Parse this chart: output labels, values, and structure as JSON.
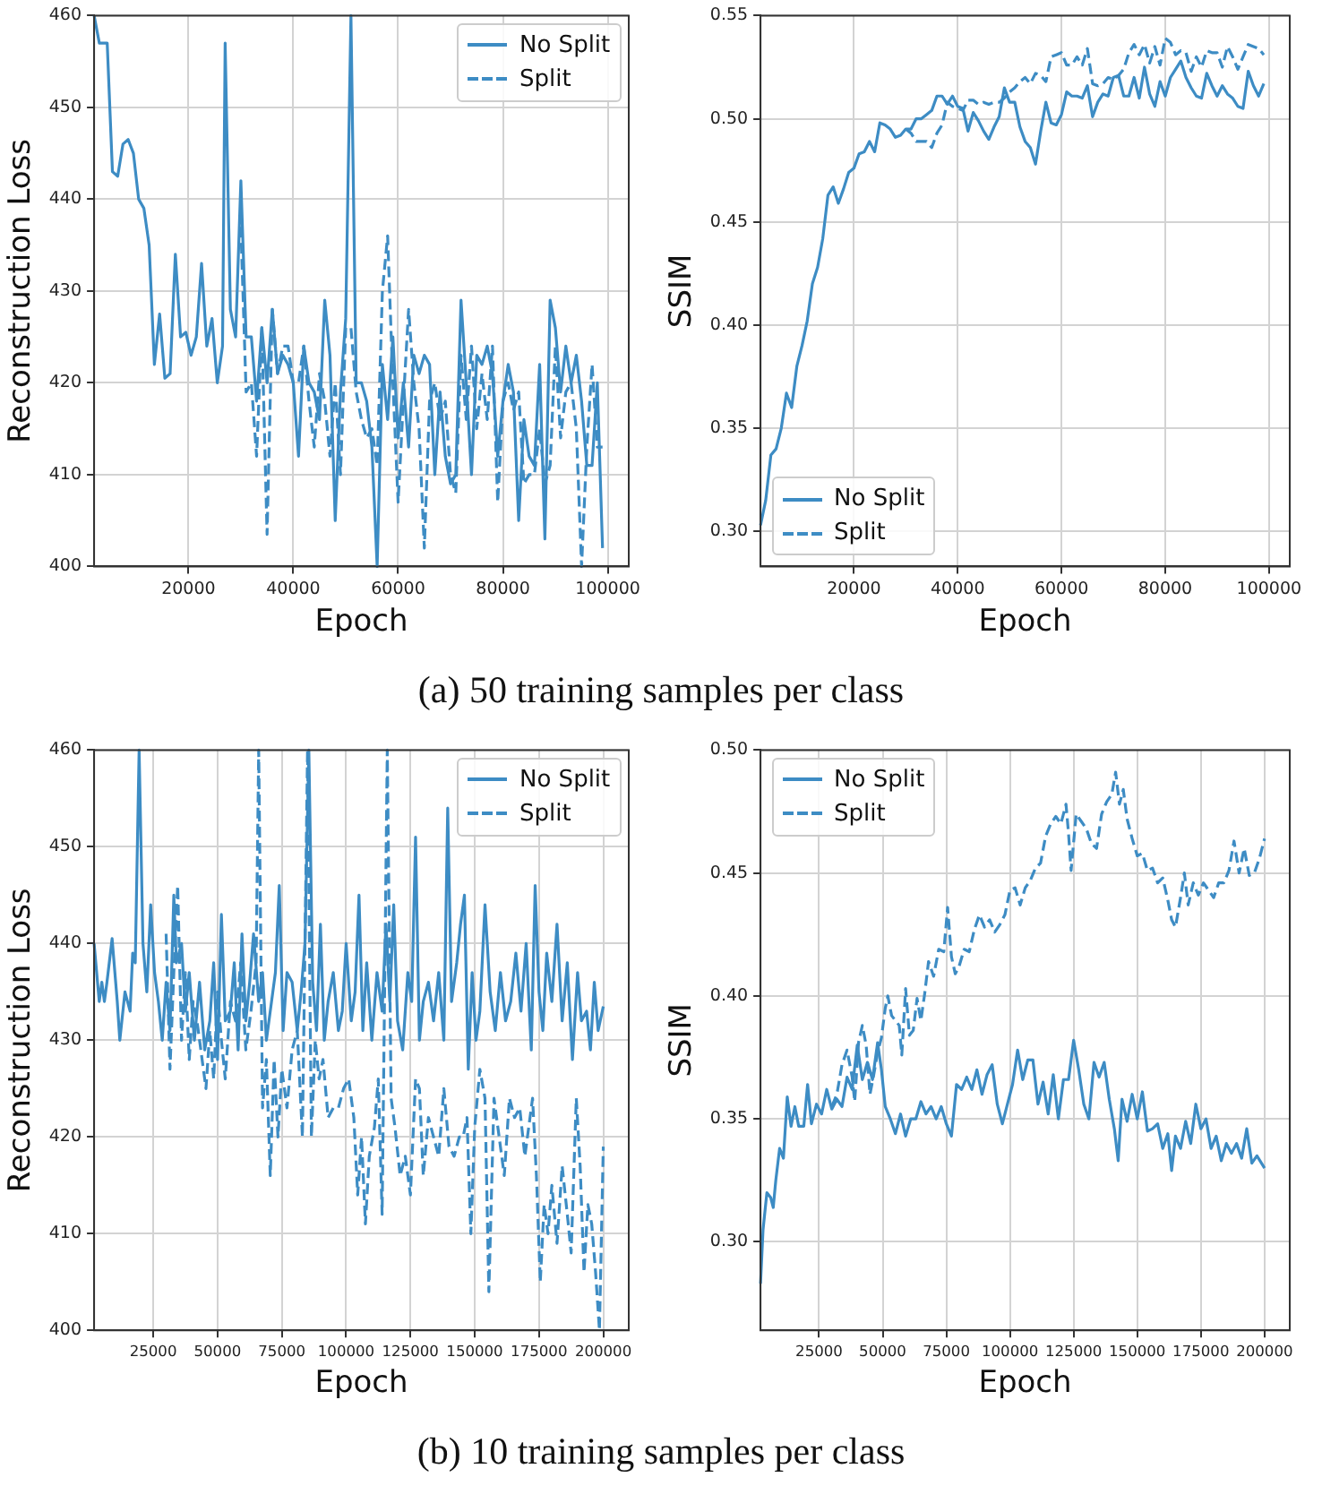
{
  "chart_data": [
    {
      "type": "line",
      "xlabel": "Epoch",
      "ylabel": "Reconstruction Loss",
      "xlim": [
        2000,
        104000
      ],
      "ylim": [
        400,
        460
      ],
      "xticks": [
        20000,
        40000,
        60000,
        80000,
        100000
      ],
      "yticks": [
        400,
        410,
        420,
        430,
        440,
        450,
        460
      ],
      "grid": true,
      "legend": "top right",
      "annotations": [
        "(a) 50 training samples per class"
      ],
      "series": [
        {
          "name": "No Split",
          "color": "#3d8cc4",
          "line_style": "solid",
          "x": [
            2000,
            3000,
            4500,
            5500,
            6500,
            7500,
            8500,
            9500,
            10500,
            11500,
            12500,
            13500,
            14500,
            15500,
            16500,
            17500,
            18500,
            19500,
            20500,
            21500,
            22500,
            23500,
            24500,
            25500,
            26500,
            27000,
            28000,
            29000,
            30000,
            31000,
            32000,
            33000,
            34000,
            35000,
            36000,
            37000,
            38000,
            39000,
            40000,
            41000,
            42000,
            43000,
            44000,
            45000,
            46000,
            47000,
            48000,
            49000,
            50000,
            51000,
            52000,
            53000,
            54000,
            55000,
            56000,
            57000,
            58000,
            59000,
            60000,
            61000,
            62000,
            63000,
            64000,
            65000,
            66000,
            67000,
            68000,
            69000,
            70000,
            71000,
            72000,
            73000,
            74000,
            75000,
            76000,
            77000,
            78000,
            79000,
            80000,
            81000,
            82000,
            83000,
            84000,
            85000,
            86000,
            87000,
            88000,
            89000,
            90000,
            91000,
            92000,
            93000,
            94000,
            95000,
            96000,
            97000,
            98000,
            99000
          ],
          "values": [
            460,
            457,
            457,
            443,
            442.5,
            446,
            446.5,
            445,
            440,
            439,
            435,
            422,
            427.5,
            420.5,
            421,
            434,
            425,
            425.5,
            423,
            425,
            433,
            424,
            427,
            420,
            424,
            457,
            428,
            425,
            442,
            425,
            425,
            418,
            426,
            420,
            428,
            421,
            423,
            422,
            420,
            412,
            424,
            420,
            419,
            416,
            429,
            423,
            405,
            419,
            427,
            460,
            420,
            420,
            418,
            413,
            400,
            422,
            416,
            425,
            414,
            420,
            413,
            423,
            421,
            423,
            422,
            410,
            419,
            412,
            409,
            410,
            429,
            420,
            410,
            423,
            422,
            424,
            421,
            412,
            418,
            422,
            419,
            405,
            416,
            412,
            411,
            422,
            403,
            429,
            426,
            419,
            424,
            420,
            423,
            418,
            411,
            411,
            420,
            402
          ]
        },
        {
          "name": "Split",
          "color": "#3d8cc4",
          "line_style": "dashed",
          "x": [
            30000,
            31000,
            32000,
            33000,
            34000,
            35000,
            36000,
            37000,
            38000,
            39000,
            40000,
            41000,
            42000,
            43000,
            44000,
            45000,
            46000,
            47000,
            48000,
            49000,
            50000,
            51000,
            52000,
            53000,
            54000,
            55000,
            56000,
            57000,
            58000,
            59000,
            60000,
            61000,
            62000,
            63000,
            64000,
            65000,
            66000,
            67000,
            68000,
            69000,
            70000,
            71000,
            72000,
            73000,
            74000,
            75000,
            76000,
            77000,
            78000,
            79000,
            80000,
            81000,
            82000,
            83000,
            84000,
            85000,
            86000,
            87000,
            88000,
            89000,
            90000,
            91000,
            92000,
            93000,
            94000,
            95000,
            96000,
            97000,
            98000,
            99000
          ],
          "values": [
            437,
            419,
            420,
            412,
            426,
            403.5,
            428,
            421,
            424,
            424,
            420,
            420,
            424,
            418,
            413,
            421,
            418,
            412,
            420,
            410,
            426,
            426,
            419,
            416,
            414,
            415,
            411,
            430,
            436,
            420,
            407,
            418,
            428,
            420,
            415,
            402,
            418,
            420,
            416,
            418,
            410,
            408,
            423,
            416,
            424,
            415,
            421,
            416,
            424,
            407,
            418,
            420,
            417,
            419,
            409,
            410,
            410,
            415,
            409,
            411,
            424,
            414,
            419,
            420,
            415,
            400,
            413,
            422,
            413,
            413
          ]
        }
      ]
    },
    {
      "type": "line",
      "xlabel": "Epoch",
      "ylabel": "SSIM",
      "xlim": [
        2000,
        104000
      ],
      "ylim": [
        0.283,
        0.55
      ],
      "xticks": [
        20000,
        40000,
        60000,
        80000,
        100000
      ],
      "yticks": [
        {
          "value": 0.3,
          "label": "0.30"
        },
        0.35,
        {
          "value": 0.4,
          "label": "0.40"
        },
        0.45,
        {
          "value": 0.5,
          "label": "0.50"
        },
        0.55
      ],
      "grid": true,
      "legend": "bottom left",
      "series": [
        {
          "name": "No Split",
          "color": "#3d8cc4",
          "line_style": "solid",
          "x": [
            2000,
            3000,
            4000,
            5000,
            6000,
            7000,
            8000,
            9000,
            10000,
            11000,
            12000,
            13000,
            14000,
            15000,
            16000,
            17000,
            18000,
            19000,
            20000,
            21000,
            22000,
            23000,
            24000,
            25000,
            26000,
            27000,
            28000,
            29000,
            30000,
            31000,
            32000,
            33000,
            34000,
            35000,
            36000,
            37000,
            38000,
            39000,
            40000,
            41000,
            42000,
            43000,
            44000,
            45000,
            46000,
            47000,
            48000,
            49000,
            50000,
            51000,
            52000,
            53000,
            54000,
            55000,
            56000,
            57000,
            58000,
            59000,
            60000,
            61000,
            62000,
            63000,
            64000,
            65000,
            66000,
            67000,
            68000,
            69000,
            70000,
            71000,
            72000,
            73000,
            74000,
            75000,
            76000,
            77000,
            78000,
            79000,
            80000,
            81000,
            82000,
            83000,
            84000,
            85000,
            86000,
            87000,
            88000,
            89000,
            90000,
            91000,
            92000,
            93000,
            94000,
            95000,
            96000,
            97000,
            98000,
            99000
          ],
          "values": [
            0.303,
            0.315,
            0.337,
            0.34,
            0.35,
            0.367,
            0.36,
            0.38,
            0.39,
            0.402,
            0.42,
            0.428,
            0.442,
            0.463,
            0.467,
            0.459,
            0.466,
            0.474,
            0.476,
            0.483,
            0.484,
            0.489,
            0.484,
            0.498,
            0.497,
            0.495,
            0.491,
            0.492,
            0.495,
            0.495,
            0.5,
            0.5,
            0.502,
            0.504,
            0.511,
            0.511,
            0.507,
            0.511,
            0.506,
            0.505,
            0.494,
            0.503,
            0.499,
            0.494,
            0.49,
            0.496,
            0.501,
            0.515,
            0.508,
            0.508,
            0.496,
            0.489,
            0.486,
            0.478,
            0.494,
            0.508,
            0.498,
            0.497,
            0.502,
            0.513,
            0.511,
            0.511,
            0.51,
            0.516,
            0.501,
            0.508,
            0.512,
            0.511,
            0.52,
            0.521,
            0.511,
            0.511,
            0.52,
            0.51,
            0.525,
            0.512,
            0.506,
            0.518,
            0.511,
            0.52,
            0.524,
            0.528,
            0.52,
            0.515,
            0.511,
            0.51,
            0.522,
            0.516,
            0.511,
            0.516,
            0.512,
            0.51,
            0.506,
            0.505,
            0.523,
            0.516,
            0.511,
            0.517
          ]
        },
        {
          "name": "Split",
          "color": "#3d8cc4",
          "line_style": "dashed",
          "x": [
            30000,
            31000,
            32000,
            33000,
            34000,
            35000,
            36000,
            37000,
            38000,
            39000,
            40000,
            41000,
            42000,
            43000,
            44000,
            45000,
            46000,
            47000,
            48000,
            49000,
            50000,
            51000,
            52000,
            53000,
            54000,
            55000,
            56000,
            57000,
            58000,
            59000,
            60000,
            61000,
            62000,
            63000,
            64000,
            65000,
            66000,
            67000,
            68000,
            69000,
            70000,
            71000,
            72000,
            73000,
            74000,
            75000,
            76000,
            77000,
            78000,
            79000,
            80000,
            81000,
            82000,
            83000,
            84000,
            85000,
            86000,
            87000,
            88000,
            89000,
            90000,
            91000,
            92000,
            93000,
            94000,
            95000,
            96000,
            97000,
            98000,
            99000
          ],
          "values": [
            0.495,
            0.493,
            0.489,
            0.489,
            0.489,
            0.486,
            0.493,
            0.497,
            0.508,
            0.506,
            0.505,
            0.504,
            0.509,
            0.509,
            0.507,
            0.508,
            0.507,
            0.508,
            0.508,
            0.51,
            0.513,
            0.515,
            0.518,
            0.52,
            0.517,
            0.522,
            0.521,
            0.518,
            0.53,
            0.531,
            0.532,
            0.526,
            0.526,
            0.53,
            0.526,
            0.534,
            0.517,
            0.516,
            0.517,
            0.52,
            0.519,
            0.521,
            0.524,
            0.532,
            0.536,
            0.531,
            0.536,
            0.527,
            0.535,
            0.526,
            0.539,
            0.537,
            0.531,
            0.533,
            0.532,
            0.523,
            0.53,
            0.525,
            0.533,
            0.532,
            0.532,
            0.525,
            0.535,
            0.53,
            0.524,
            0.53,
            0.536,
            0.535,
            0.534,
            0.531
          ]
        }
      ]
    },
    {
      "type": "line",
      "xlabel": "Epoch",
      "ylabel": "Reconstruction Loss",
      "xlim": [
        2000,
        209900
      ],
      "ylim": [
        400,
        460
      ],
      "xticks": [
        25000,
        50000,
        75000,
        100000,
        125000,
        150000,
        175000,
        200000
      ],
      "yticks": [
        400,
        410,
        420,
        430,
        440,
        450,
        460
      ],
      "grid": true,
      "legend": "top right",
      "annotations": [
        "(b) 10 training samples per class"
      ],
      "series": [
        {
          "name": "No Split",
          "color": "#3d8cc4",
          "line_style": "solid",
          "x": [
            2000,
            4000,
            5000,
            6000,
            7000,
            9000,
            11000,
            12000,
            14000,
            16000,
            17000,
            18000,
            19500,
            21000,
            22500,
            24000,
            25500,
            27000,
            28500,
            30000,
            31500,
            33000,
            34000,
            36000,
            37500,
            39000,
            41000,
            43000,
            45000,
            47000,
            48500,
            50000,
            51500,
            53000,
            55000,
            56500,
            58000,
            59500,
            61000,
            62500,
            64000,
            66000,
            67500,
            69000,
            71000,
            72500,
            74000,
            75500,
            77000,
            79000,
            81000,
            82500,
            84000,
            85500,
            87000,
            88500,
            90000,
            91500,
            93000,
            95000,
            97000,
            98500,
            100000,
            102000,
            103500,
            105000,
            106500,
            108000,
            110000,
            112000,
            114000,
            115500,
            117000,
            118500,
            120000,
            122000,
            124000,
            125500,
            127000,
            128500,
            130000,
            132000,
            134000,
            136000,
            138000,
            139500,
            141000,
            143000,
            144500,
            146000,
            147500,
            149000,
            150500,
            152000,
            154000,
            156000,
            158000,
            160000,
            162000,
            164000,
            166000,
            168000,
            170000,
            172000,
            173500,
            175000,
            176500,
            178000,
            180000,
            182000,
            184000,
            186000,
            188000,
            190000,
            191500,
            193500,
            195000,
            196500,
            198000,
            200000
          ],
          "values": [
            440,
            434,
            436,
            434,
            436,
            440.5,
            434,
            430,
            435,
            433,
            439,
            438,
            460,
            440,
            435,
            444,
            437,
            434,
            430,
            436,
            431,
            445,
            438,
            440,
            433,
            437,
            430,
            436,
            429,
            432,
            438,
            428,
            443,
            432,
            433,
            438,
            429,
            441,
            432,
            436,
            441,
            434,
            437,
            430,
            434,
            437,
            446,
            431,
            437,
            436,
            431,
            435,
            440,
            460,
            436,
            431,
            442,
            430,
            434,
            437,
            431,
            433,
            440,
            432,
            435,
            445,
            431,
            438,
            430,
            437,
            433,
            442,
            434,
            444,
            432,
            429,
            437,
            434,
            451,
            430,
            434,
            436,
            432,
            437,
            430,
            454,
            434,
            438,
            442,
            445,
            427,
            437,
            430,
            433,
            444,
            435,
            431,
            437,
            432,
            434,
            439,
            433,
            440,
            429,
            446,
            435,
            431,
            439,
            434,
            442,
            432,
            438,
            428,
            437,
            432,
            433,
            429,
            436,
            431,
            433.5
          ]
        },
        {
          "name": "Split",
          "color": "#3d8cc4",
          "line_style": "dashed",
          "x": [
            30000,
            31500,
            33000,
            34500,
            36000,
            37500,
            39000,
            40500,
            42000,
            44000,
            45500,
            47000,
            48500,
            50000,
            51500,
            53000,
            55000,
            57000,
            59000,
            61000,
            63000,
            65000,
            66000,
            67500,
            69000,
            70500,
            72000,
            73500,
            75000,
            77000,
            79000,
            81000,
            83000,
            85000,
            86500,
            88000,
            89500,
            91000,
            93000,
            95000,
            97000,
            99000,
            101000,
            103000,
            104500,
            106000,
            107500,
            109000,
            111000,
            112500,
            114000,
            116000,
            117500,
            119000,
            121000,
            123000,
            125000,
            127000,
            128500,
            130000,
            132000,
            134000,
            136000,
            138000,
            140000,
            142000,
            144000,
            145500,
            147000,
            148500,
            150000,
            152000,
            154000,
            155500,
            157500,
            159500,
            161500,
            163500,
            165500,
            167500,
            169500,
            171000,
            172500,
            174000,
            175500,
            177000,
            178500,
            180000,
            182000,
            184000,
            186000,
            187500,
            189500,
            191000,
            192500,
            194000,
            195500,
            197000,
            198500,
            200000
          ],
          "values": [
            441,
            427,
            437,
            446,
            430,
            437,
            428,
            434,
            432,
            428,
            425,
            431,
            426,
            435,
            430,
            426,
            434,
            432,
            438,
            429,
            433,
            438,
            460,
            423,
            428,
            416,
            428,
            420,
            427,
            423,
            429,
            431,
            420,
            460,
            420,
            430,
            426,
            428,
            422,
            423,
            423,
            425,
            426,
            422,
            414,
            420,
            411,
            418,
            421,
            426,
            412,
            460,
            424,
            421,
            416,
            418,
            414,
            426,
            425,
            416,
            422,
            420,
            418,
            425,
            419,
            418,
            420,
            420,
            422,
            410,
            421,
            427,
            424,
            404,
            424,
            420,
            416,
            424,
            422,
            423,
            418,
            421,
            424,
            416,
            405,
            413,
            410,
            415,
            409,
            417,
            412,
            408,
            424,
            417,
            406,
            413,
            411,
            406,
            400,
            419
          ]
        }
      ]
    },
    {
      "type": "line",
      "xlabel": "Epoch",
      "ylabel": "SSIM",
      "xlim": [
        2000,
        209900
      ],
      "ylim": [
        0.264,
        0.5
      ],
      "xticks": [
        25000,
        50000,
        75000,
        100000,
        125000,
        150000,
        175000,
        200000
      ],
      "yticks": [
        {
          "value": 0.3,
          "label": "0.30"
        },
        0.35,
        {
          "value": 0.4,
          "label": "0.40"
        },
        0.45,
        {
          "value": 0.5,
          "label": "0.50"
        }
      ],
      "grid": true,
      "legend": "top left",
      "series": [
        {
          "name": "No Split",
          "color": "#3d8cc4",
          "line_style": "solid",
          "x": [
            2000,
            3000,
            4500,
            6000,
            7000,
            8000,
            9500,
            11000,
            12500,
            14000,
            15500,
            17000,
            19000,
            20500,
            22000,
            24000,
            26000,
            28000,
            30000,
            32000,
            34000,
            36000,
            38000,
            40000,
            42000,
            44000,
            46000,
            48000,
            49500,
            51000,
            53000,
            55000,
            57000,
            59000,
            61000,
            63000,
            65000,
            67000,
            69000,
            71000,
            73000,
            75000,
            77000,
            79000,
            81000,
            83000,
            85000,
            87000,
            89000,
            91000,
            93000,
            95000,
            97000,
            99000,
            101000,
            103000,
            105000,
            107000,
            109000,
            111000,
            113000,
            115000,
            117000,
            119000,
            121000,
            123000,
            125000,
            127000,
            129000,
            131000,
            133000,
            135000,
            137000,
            139000,
            141000,
            142500,
            144000,
            146000,
            148000,
            150000,
            152000,
            154000,
            156000,
            158000,
            160000,
            162000,
            163500,
            165000,
            167000,
            169000,
            171000,
            173000,
            175000,
            177000,
            179000,
            181000,
            183000,
            185000,
            187000,
            189000,
            191000,
            193000,
            195000,
            197000,
            200000
          ],
          "values": [
            0.283,
            0.305,
            0.32,
            0.318,
            0.314,
            0.325,
            0.338,
            0.334,
            0.359,
            0.347,
            0.355,
            0.347,
            0.347,
            0.364,
            0.348,
            0.356,
            0.352,
            0.362,
            0.354,
            0.358,
            0.355,
            0.367,
            0.362,
            0.38,
            0.366,
            0.373,
            0.366,
            0.381,
            0.37,
            0.355,
            0.35,
            0.344,
            0.352,
            0.343,
            0.35,
            0.35,
            0.357,
            0.352,
            0.355,
            0.35,
            0.355,
            0.348,
            0.343,
            0.364,
            0.362,
            0.367,
            0.362,
            0.37,
            0.36,
            0.368,
            0.372,
            0.356,
            0.348,
            0.356,
            0.364,
            0.378,
            0.366,
            0.374,
            0.374,
            0.356,
            0.365,
            0.352,
            0.368,
            0.35,
            0.366,
            0.366,
            0.382,
            0.37,
            0.356,
            0.35,
            0.373,
            0.367,
            0.373,
            0.358,
            0.346,
            0.333,
            0.358,
            0.349,
            0.36,
            0.35,
            0.361,
            0.345,
            0.346,
            0.348,
            0.338,
            0.344,
            0.329,
            0.343,
            0.338,
            0.349,
            0.34,
            0.356,
            0.346,
            0.35,
            0.338,
            0.343,
            0.333,
            0.34,
            0.336,
            0.34,
            0.334,
            0.346,
            0.332,
            0.335,
            0.33
          ]
        },
        {
          "name": "Split",
          "color": "#3d8cc4",
          "line_style": "dashed",
          "x": [
            30000,
            32000,
            34000,
            36000,
            38000,
            39000,
            40500,
            42000,
            43500,
            45000,
            46500,
            48000,
            49500,
            51000,
            52000,
            53500,
            55000,
            56500,
            57500,
            59000,
            60500,
            62000,
            63500,
            65000,
            66500,
            68000,
            70000,
            72000,
            74000,
            75500,
            77000,
            78500,
            80000,
            82000,
            84000,
            86000,
            88000,
            90000,
            92000,
            94000,
            96000,
            98000,
            100000,
            102000,
            104000,
            106000,
            108000,
            110000,
            112000,
            114000,
            116000,
            118000,
            120000,
            122000,
            123000,
            124000,
            126000,
            128000,
            130000,
            132000,
            134000,
            136000,
            138000,
            140000,
            141500,
            143000,
            144500,
            146000,
            148000,
            150000,
            152000,
            154000,
            156000,
            158000,
            160000,
            162000,
            163500,
            165000,
            167000,
            168500,
            170000,
            172000,
            174000,
            176000,
            178000,
            180000,
            182000,
            184000,
            186000,
            188000,
            190000,
            192000,
            194000,
            196000,
            198000,
            200000
          ],
          "values": [
            0.355,
            0.36,
            0.372,
            0.378,
            0.367,
            0.357,
            0.381,
            0.388,
            0.38,
            0.36,
            0.368,
            0.377,
            0.383,
            0.395,
            0.4,
            0.392,
            0.39,
            0.388,
            0.376,
            0.403,
            0.384,
            0.386,
            0.399,
            0.39,
            0.401,
            0.414,
            0.408,
            0.419,
            0.418,
            0.436,
            0.416,
            0.409,
            0.412,
            0.419,
            0.418,
            0.427,
            0.433,
            0.428,
            0.431,
            0.426,
            0.429,
            0.433,
            0.443,
            0.444,
            0.437,
            0.444,
            0.447,
            0.452,
            0.454,
            0.465,
            0.47,
            0.473,
            0.47,
            0.478,
            0.466,
            0.451,
            0.474,
            0.471,
            0.468,
            0.462,
            0.46,
            0.474,
            0.479,
            0.482,
            0.491,
            0.478,
            0.484,
            0.472,
            0.464,
            0.457,
            0.458,
            0.451,
            0.452,
            0.446,
            0.448,
            0.439,
            0.431,
            0.428,
            0.44,
            0.45,
            0.437,
            0.446,
            0.441,
            0.446,
            0.443,
            0.44,
            0.446,
            0.446,
            0.451,
            0.463,
            0.45,
            0.46,
            0.449,
            0.45,
            0.456,
            0.464
          ]
        }
      ]
    }
  ]
}
